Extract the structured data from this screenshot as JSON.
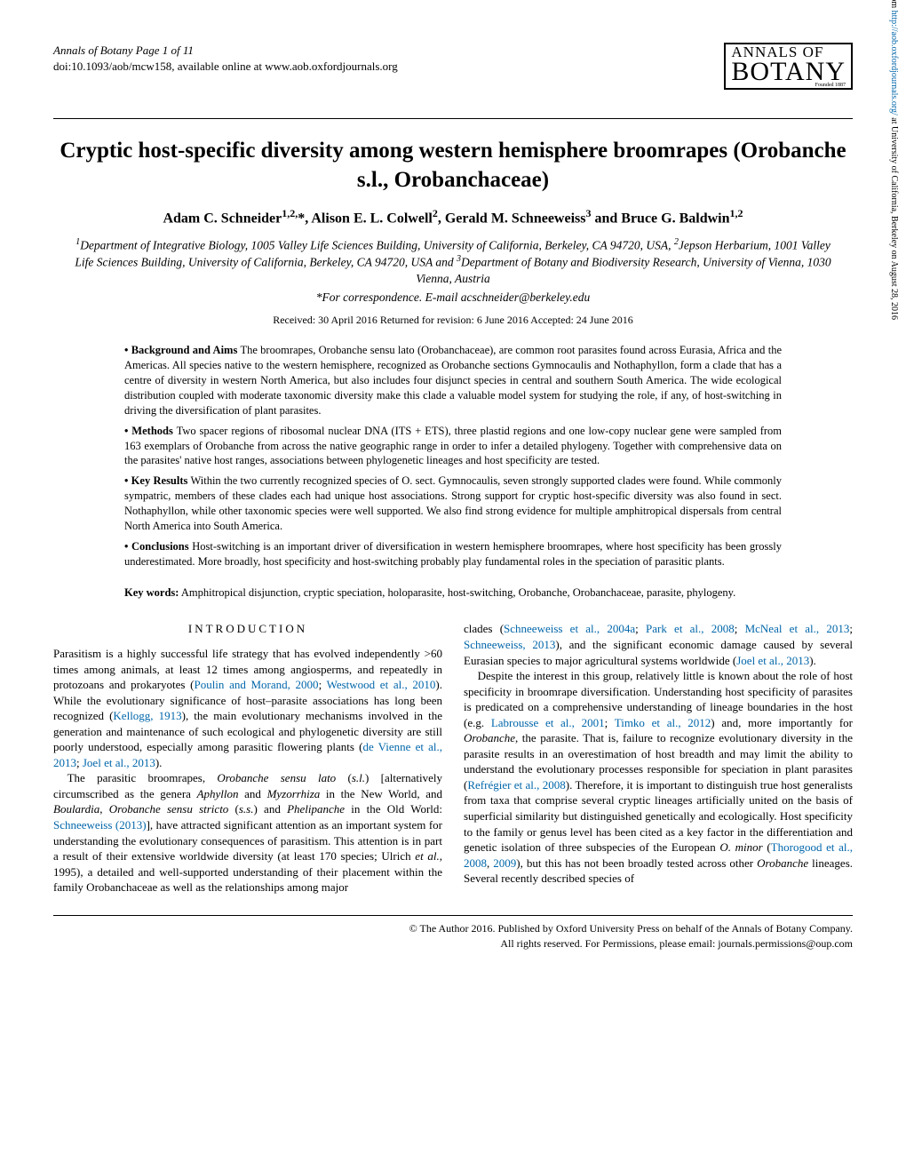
{
  "header": {
    "journal_line1": "Annals of Botany Page 1 of 11",
    "journal_line2": "doi:10.1093/aob/mcw158, available online at www.aob.oxfordjournals.org",
    "logo_top": "ANNALS OF",
    "logo_bottom": "BOTANY",
    "logo_founded": "Founded 1887"
  },
  "title": "Cryptic host-specific diversity among western hemisphere broomrapes (Orobanche s.l., Orobanchaceae)",
  "authors_html": "Adam C. Schneider<sup>1,2,</sup>*, Alison E. L. Colwell<sup>2</sup>, Gerald M. Schneeweiss<sup>3</sup> and Bruce G. Baldwin<sup>1,2</sup>",
  "affiliations_html": "<sup>1</sup>Department of Integrative Biology, 1005 Valley Life Sciences Building, University of California, Berkeley, CA 94720, USA, <sup>2</sup>Jepson Herbarium, 1001 Valley Life Sciences Building, University of California, Berkeley, CA 94720, USA and <sup>3</sup>Department of Botany and Biodiversity Research, University of Vienna, 1030 Vienna, Austria",
  "correspondence": "*For correspondence. E-mail acschneider@berkeley.edu",
  "dates": "Received: 30 April 2016    Returned for revision: 6 June 2016    Accepted: 24 June 2016",
  "abstract": {
    "background_label": "• Background and Aims",
    "background": "The broomrapes, Orobanche sensu lato (Orobanchaceae), are common root parasites found across Eurasia, Africa and the Americas. All species native to the western hemisphere, recognized as Orobanche sections Gymnocaulis and Nothaphyllon, form a clade that has a centre of diversity in western North America, but also includes four disjunct species in central and southern South America. The wide ecological distribution coupled with moderate taxonomic diversity make this clade a valuable model system for studying the role, if any, of host-switching in driving the diversification of plant parasites.",
    "methods_label": "• Methods",
    "methods": "Two spacer regions of ribosomal nuclear DNA (ITS + ETS), three plastid regions and one low-copy nuclear gene were sampled from 163 exemplars of Orobanche from across the native geographic range in order to infer a detailed phylogeny. Together with comprehensive data on the parasites' native host ranges, associations between phylogenetic lineages and host specificity are tested.",
    "results_label": "• Key Results",
    "results": "Within the two currently recognized species of O. sect. Gymnocaulis, seven strongly supported clades were found. While commonly sympatric, members of these clades each had unique host associations. Strong support for cryptic host-specific diversity was also found in sect. Nothaphyllon, while other taxonomic species were well supported. We also find strong evidence for multiple amphitropical dispersals from central North America into South America.",
    "conclusions_label": "• Conclusions",
    "conclusions": "Host-switching is an important driver of diversification in western hemisphere broomrapes, where host specificity has been grossly underestimated. More broadly, host specificity and host-switching probably play fundamental roles in the speciation of parasitic plants."
  },
  "keywords_label": "Key words:",
  "keywords": "Amphitropical disjunction, cryptic speciation, holoparasite, host-switching, Orobanche, Orobanchaceae, parasite, phylogeny.",
  "section_heading": "INTRODUCTION",
  "col1_p1": "Parasitism is a highly successful life strategy that has evolved independently >60 times among animals, at least 12 times among angiosperms, and repeatedly in protozoans and prokaryotes (<a class=\"ref\">Poulin and Morand, 2000</a>; <a class=\"ref\">Westwood et al., 2010</a>). While the evolutionary significance of host–parasite associations has long been recognized (<a class=\"ref\">Kellogg, 1913</a>), the main evolutionary mechanisms involved in the generation and maintenance of such ecological and phylogenetic diversity are still poorly understood, especially among parasitic flowering plants (<a class=\"ref\">de Vienne et al., 2013</a>; <a class=\"ref\">Joel et al., 2013</a>).",
  "col1_p2": "The parasitic broomrapes, <i>Orobanche sensu lato</i> (<i>s.l.</i>) [alternatively circumscribed as the genera <i>Aphyllon</i> and <i>Myzorrhiza</i> in the New World, and <i>Boulardia</i>, <i>Orobanche sensu stricto</i> (<i>s.s.</i>) and <i>Phelipanche</i> in the Old World: <a class=\"ref\">Schneeweiss (2013)</a>], have attracted significant attention as an important system for understanding the evolutionary consequences of parasitism. This attention is in part a result of their extensive worldwide diversity (at least 170 species; Ulrich <i>et al.</i>, 1995), a detailed and well-supported understanding of their placement within the family Orobanchaceae as well as the relationships among major",
  "col2_p1": "clades (<a class=\"ref\">Schneeweiss et al., 2004a</a>; <a class=\"ref\">Park et al., 2008</a>; <a class=\"ref\">McNeal et al., 2013</a>; <a class=\"ref\">Schneeweiss, 2013</a>), and the significant economic damage caused by several Eurasian species to major agricultural systems worldwide (<a class=\"ref\">Joel et al., 2013</a>).",
  "col2_p2": "Despite the interest in this group, relatively little is known about the role of host specificity in broomrape diversification. Understanding host specificity of parasites is predicated on a comprehensive understanding of lineage boundaries in the host (e.g. <a class=\"ref\">Labrousse et al., 2001</a>; <a class=\"ref\">Timko et al., 2012</a>) and, more importantly for <i>Orobanche</i>, the parasite. That is, failure to recognize evolutionary diversity in the parasite results in an overestimation of host breadth and may limit the ability to understand the evolutionary processes responsible for speciation in plant parasites (<a class=\"ref\">Refrégier et al., 2008</a>). Therefore, it is important to distinguish true host generalists from taxa that comprise several cryptic lineages artificially united on the basis of superficial similarity but distinguished genetically and ecologically. Host specificity to the family or genus level has been cited as a key factor in the differentiation and genetic isolation of three subspecies of the European <i>O. minor</i> (<a class=\"ref\">Thorogood et al., 2008</a>, <a class=\"ref\">2009</a>), but this has not been broadly tested across other <i>Orobanche</i> lineages. Several recently described species of",
  "footer_line1": "© The Author 2016. Published by Oxford University Press on behalf of the Annals of Botany Company.",
  "footer_line2": "All rights reserved. For Permissions, please email: journals.permissions@oup.com",
  "sidebar_pre": "Downloaded from ",
  "sidebar_link": "http://aob.oxfordjournals.org/",
  "sidebar_post": " at University of California, Berkeley on August 28, 2016"
}
